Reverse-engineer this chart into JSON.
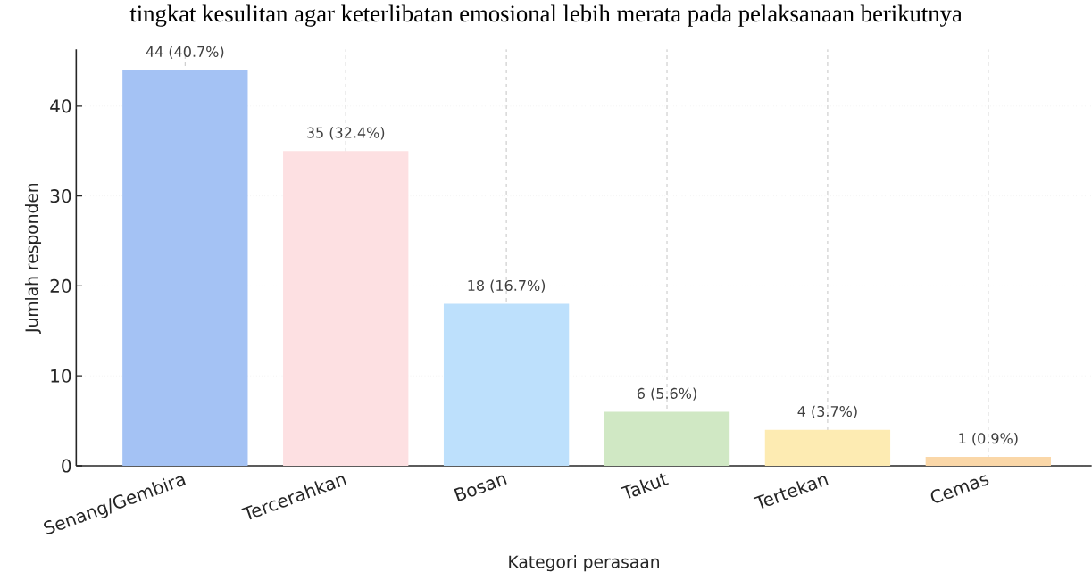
{
  "chart_data": {
    "type": "bar",
    "xlabel": "Kategori perasaan",
    "ylabel": "Jumlah responden",
    "annotations": [
      "tingkat kesulitan agar keterlibatan emosional lebih merata pada pelaksanaan berikutnya"
    ],
    "categories": [
      "Senang/Gembira",
      "Tercerahkan",
      "Bosan",
      "Takut",
      "Tertekan",
      "Cemas"
    ],
    "values": [
      44,
      35,
      18,
      6,
      4,
      1
    ],
    "colors": [
      "#a4c2f4",
      "#fde0e2",
      "#bde0fc",
      "#d0e8c4",
      "#fdebb2",
      "#fad7a8"
    ],
    "value_labels": [
      "44 (40.7%)",
      "35 (32.4%)",
      "18 (16.7%)",
      "6 (5.6%)",
      "4 (3.7%)",
      "1 (0.9%)"
    ],
    "ylim": [
      0,
      46.3
    ],
    "yticks": [
      0,
      10,
      20,
      30,
      40
    ],
    "grid": true
  }
}
